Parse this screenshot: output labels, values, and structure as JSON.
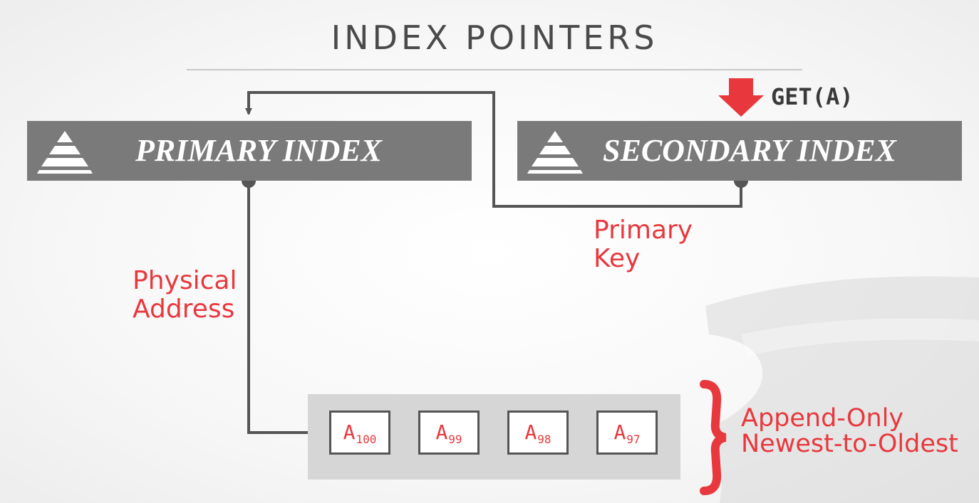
{
  "title": "INDEX POINTERS",
  "query": "GET(A)",
  "primary_index": {
    "label": "PRIMARY INDEX",
    "icon": "tree-index-icon"
  },
  "secondary_index": {
    "label": "SECONDARY INDEX",
    "icon": "tree-index-icon"
  },
  "edge_labels": {
    "primary_key": [
      "Primary",
      "Key"
    ],
    "physical_address": [
      "Physical",
      "Address"
    ]
  },
  "version_chain": {
    "versions": [
      {
        "base": "A",
        "sub": "100"
      },
      {
        "base": "A",
        "sub": "99"
      },
      {
        "base": "A",
        "sub": "98"
      },
      {
        "base": "A",
        "sub": "97"
      }
    ],
    "annotation": [
      "Append-Only",
      "Newest-to-Oldest"
    ]
  },
  "colors": {
    "accent_red": "#e8383d",
    "index_box": "#7a7a7a",
    "line": "#555555",
    "chain_bg": "#d6d6d6"
  }
}
